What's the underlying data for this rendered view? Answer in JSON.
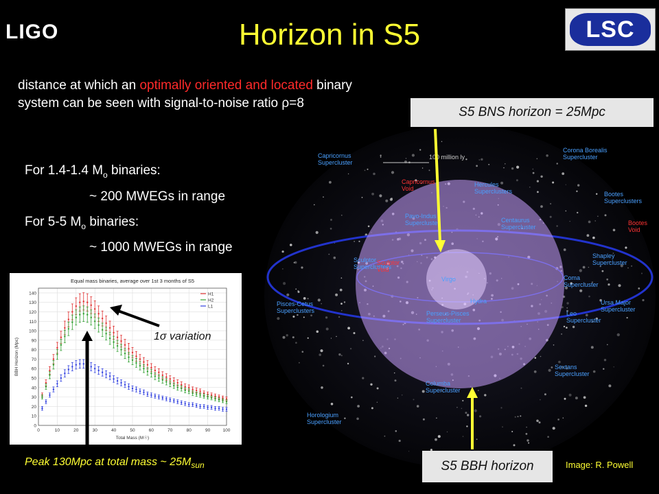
{
  "header": {
    "ligo_logo": "LIGO",
    "title": "Horizon in S5",
    "lsc_logo": "LSC"
  },
  "description": {
    "part1": "distance at which an ",
    "highlight": "optimally oriented and located",
    "part2": " binary system can be seen with signal-to-noise ratio ",
    "rho": "ρ=8"
  },
  "binaries": {
    "line1_prefix": "For 1.4-1.4 M",
    "line1_sub": "o",
    "line1_suffix": " binaries:",
    "line2": "~ 200 MWEGs in range",
    "line3_prefix": "For 5-5 M",
    "line3_sub": "o",
    "line3_suffix": " binaries:",
    "line4": "~ 1000 MWEGs in range"
  },
  "universe_map": {
    "scale_label": "100 million ly",
    "regions": [
      "Capricornus Supercluster",
      "Corona Borealis Supercluster",
      "Hercules Superclusters",
      "Bootes Superclusters",
      "Capricornus Void",
      "Bootes Void",
      "Pavo-Indus Supercluster",
      "Centaurus Supercluster",
      "Shapley Supercluster",
      "Sculptor Superclusters",
      "Sculptor Void",
      "Virgo",
      "Coma Supercluster",
      "Hydra",
      "Pisces-Cetus Superclusters",
      "Perseus-Pisces Supercluster",
      "Ursa Major Supercluster",
      "Leo Supercluster",
      "Horologium Supercluster",
      "Sextans Supercluster",
      "Columba Supercluster"
    ],
    "colors": {
      "bbh_disk": "#c8a0ff",
      "bns_disk": "#e6d0ff",
      "arrow": "#ffff33",
      "grid": "#2233cc"
    }
  },
  "labels": {
    "bns_horizon": "S5 BNS horizon = 25Mpc",
    "bbh_horizon": "S5 BBH horizon",
    "image_credit": "Image: R. Powell"
  },
  "plot": {
    "peak_text": "Peak 130Mpc at total mass ~ 25M",
    "peak_sub": "sun",
    "variation_text": "1σ variation"
  },
  "chart_data": {
    "type": "line",
    "title": "Equal mass binaries, average over 1st 3 months of S5",
    "xlabel": "Total Mass (M☉)",
    "ylabel": "BBH Horizon (Mpc)",
    "xlim": [
      0,
      100
    ],
    "ylim": [
      0,
      145
    ],
    "xticks": [
      0,
      10,
      20,
      30,
      40,
      50,
      60,
      70,
      80,
      90,
      100
    ],
    "yticks": [
      0,
      10,
      20,
      30,
      40,
      50,
      60,
      70,
      80,
      90,
      100,
      110,
      120,
      130,
      140
    ],
    "legend_position": "top-right",
    "x": [
      2,
      4,
      6,
      8,
      10,
      12,
      14,
      16,
      18,
      20,
      22,
      24,
      26,
      28,
      30,
      32,
      34,
      36,
      38,
      40,
      42,
      44,
      46,
      48,
      50,
      52,
      54,
      56,
      58,
      60,
      62,
      64,
      66,
      68,
      70,
      72,
      74,
      76,
      78,
      80,
      82,
      84,
      86,
      88,
      90,
      92,
      94,
      96,
      98,
      100
    ],
    "series": [
      {
        "name": "H1",
        "color": "#e03030",
        "values": [
          32,
          45,
          58,
          70,
          82,
          93,
          103,
          112,
          120,
          126,
          130,
          131,
          130,
          127,
          123,
          118,
          113,
          108,
          103,
          98,
          93,
          89,
          85,
          81,
          77,
          73,
          70,
          67,
          64,
          61,
          58,
          56,
          53,
          51,
          49,
          47,
          45,
          43,
          41,
          40,
          38,
          37,
          36,
          34,
          33,
          32,
          31,
          30,
          29,
          28
        ]
      },
      {
        "name": "H2",
        "color": "#30a030",
        "values": [
          30,
          41,
          53,
          64,
          75,
          85,
          94,
          102,
          109,
          114,
          117,
          118,
          117,
          114,
          110,
          106,
          101,
          97,
          92,
          88,
          84,
          80,
          76,
          72,
          69,
          66,
          63,
          60,
          57,
          55,
          52,
          50,
          48,
          46,
          44,
          42,
          40,
          39,
          37,
          36,
          34,
          33,
          32,
          31,
          30,
          29,
          28,
          27,
          26,
          25
        ]
      },
      {
        "name": "L1",
        "color": "#3040e0",
        "values": [
          18,
          25,
          32,
          38,
          44,
          50,
          55,
          59,
          62,
          64,
          65,
          65,
          64,
          62,
          60,
          58,
          56,
          54,
          52,
          49,
          47,
          45,
          43,
          41,
          39,
          38,
          36,
          35,
          33,
          32,
          31,
          30,
          29,
          28,
          27,
          26,
          25,
          24,
          23,
          22,
          22,
          21,
          20,
          20,
          19,
          19,
          18,
          18,
          17,
          17
        ]
      }
    ]
  }
}
